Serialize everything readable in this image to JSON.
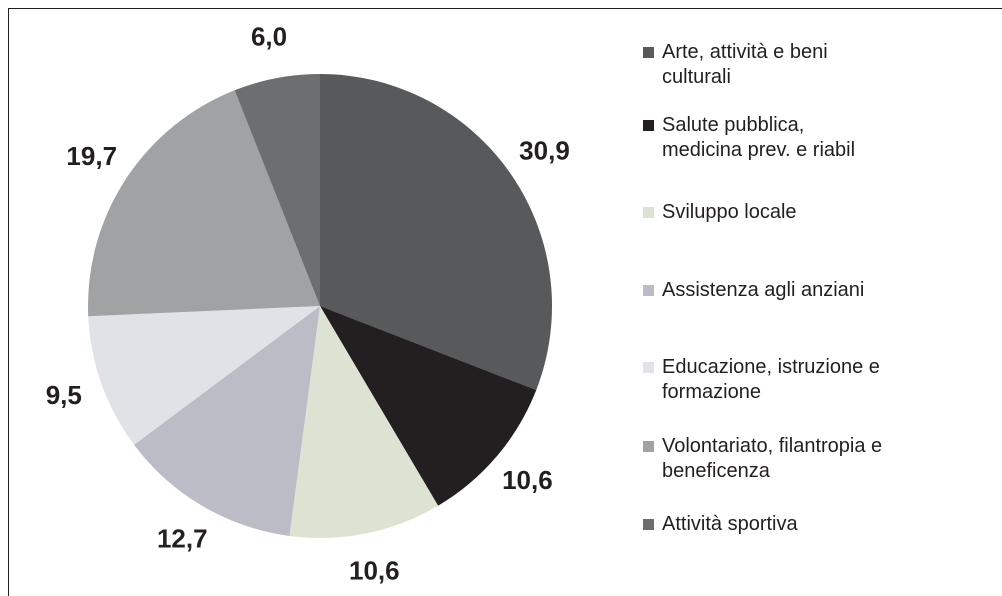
{
  "chart_data": {
    "type": "pie",
    "categories": [
      "Arte, attività e beni\nculturali",
      "Salute pubblica,\nmedicina prev. e riabil",
      "Sviluppo locale",
      "Assistenza agli anziani",
      "Educazione, istruzione e\nformazione",
      "Volontariato, filantropia e\nbeneficenza",
      "Attività sportiva"
    ],
    "values": [
      30.9,
      10.6,
      10.6,
      12.7,
      9.5,
      19.7,
      6.0
    ],
    "value_labels": [
      "30,9",
      "10,6",
      "10,6",
      "12,7",
      "9,5",
      "19,7",
      "6,0"
    ],
    "colors": [
      "#58595b",
      "#231f20",
      "#dde3d3",
      "#bcbcc6",
      "#dfe2e6",
      "#a0a2a4",
      "#6d6e70"
    ],
    "legend": "right"
  }
}
